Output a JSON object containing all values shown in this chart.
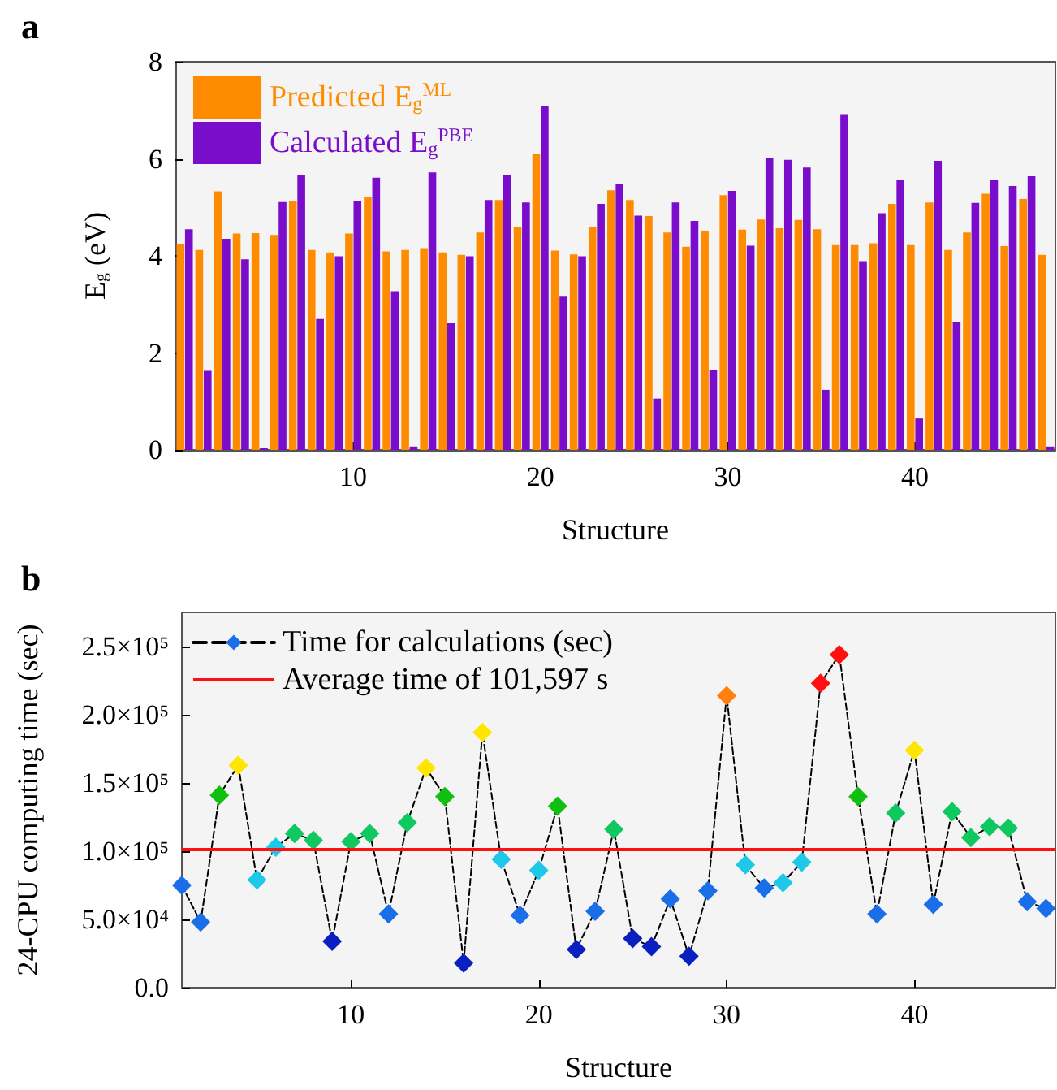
{
  "chart_data": [
    {
      "type": "bar",
      "title": "a",
      "xlabel": "Structure",
      "ylabel": "E$_{g}$ (eV)",
      "x": [
        1,
        2,
        3,
        4,
        5,
        6,
        7,
        8,
        9,
        10,
        11,
        12,
        13,
        14,
        15,
        16,
        17,
        18,
        19,
        20,
        21,
        22,
        23,
        24,
        25,
        26,
        27,
        28,
        29,
        30,
        31,
        32,
        33,
        34,
        35,
        36,
        37,
        38,
        39,
        40,
        41,
        42,
        43,
        44,
        45,
        46,
        47
      ],
      "xlim": [
        0.5,
        47.5
      ],
      "xticks": [
        10,
        20,
        30,
        40
      ],
      "ylim": [
        0,
        8
      ],
      "yticks": [
        0,
        2,
        4,
        6,
        8
      ],
      "legend": "top left",
      "series": [
        {
          "name": "Predicted E$_{g}$$^{ML}$",
          "color": "#ff8c00",
          "values": [
            4.25,
            4.12,
            5.33,
            4.46,
            4.47,
            4.43,
            5.13,
            4.12,
            4.07,
            4.46,
            5.22,
            4.09,
            4.12,
            4.16,
            4.07,
            4.02,
            4.48,
            5.15,
            4.6,
            6.11,
            4.11,
            4.03,
            4.6,
            5.35,
            5.15,
            4.82,
            4.48,
            4.19,
            4.51,
            5.25,
            4.54,
            4.75,
            4.57,
            4.74,
            4.55,
            4.22,
            4.22,
            4.26,
            5.07,
            4.22,
            5.1,
            4.12,
            4.48,
            5.28,
            4.2,
            5.17,
            4.02
          ]
        },
        {
          "name": "Calculated E$_{g}$$^{PBE}$",
          "color": "#7a0ccc",
          "values": [
            4.55,
            1.63,
            4.35,
            3.93,
            0.05,
            5.11,
            5.66,
            2.7,
            3.99,
            5.13,
            5.61,
            3.27,
            0.07,
            5.72,
            2.61,
            3.99,
            5.15,
            5.66,
            5.1,
            7.08,
            3.16,
            3.99,
            5.07,
            5.49,
            4.83,
            1.06,
            5.1,
            4.72,
            1.64,
            5.34,
            4.21,
            6.01,
            5.98,
            5.82,
            1.24,
            6.92,
            3.89,
            4.88,
            5.56,
            0.65,
            5.96,
            2.64,
            5.09,
            5.56,
            5.44,
            5.64,
            0.07
          ]
        }
      ]
    },
    {
      "type": "line",
      "title": "b",
      "xlabel": "Structure",
      "ylabel": "24-CPU computing time (sec)",
      "x": [
        1,
        2,
        3,
        4,
        5,
        6,
        7,
        8,
        9,
        10,
        11,
        12,
        13,
        14,
        15,
        16,
        17,
        18,
        19,
        20,
        21,
        22,
        23,
        24,
        25,
        26,
        27,
        28,
        29,
        30,
        31,
        32,
        33,
        34,
        35,
        36,
        37,
        38,
        39,
        40,
        41,
        42,
        43,
        44,
        45,
        46,
        47
      ],
      "xlim": [
        1,
        47.5
      ],
      "xticks": [
        10,
        20,
        30,
        40
      ],
      "ylim": [
        0,
        275000
      ],
      "yticks": [
        {
          "value": 0,
          "label": "0.0"
        },
        {
          "value": 50000,
          "label": "5.0×10⁴"
        },
        {
          "value": 100000,
          "label": "1.0×10⁵"
        },
        {
          "value": 150000,
          "label": "1.5×10⁵"
        },
        {
          "value": 200000,
          "label": "2.0×10⁵"
        },
        {
          "value": 250000,
          "label": "2.5×10⁵"
        }
      ],
      "legend": "top left",
      "marker": "diamond",
      "line_style": "dashed",
      "series": [
        {
          "name": "Time for calculations (sec)",
          "color": "#000000",
          "values": [
            75000,
            48000,
            141000,
            163000,
            79000,
            103000,
            113000,
            108000,
            34000,
            107000,
            113000,
            54000,
            121000,
            161000,
            140000,
            18000,
            187000,
            94000,
            53000,
            86000,
            133000,
            28000,
            56000,
            116000,
            36000,
            30000,
            65000,
            23000,
            71000,
            214000,
            90000,
            73000,
            77000,
            92000,
            223000,
            244000,
            140000,
            54000,
            128000,
            174000,
            61000,
            129000,
            110000,
            118000,
            117000,
            63000,
            58000
          ],
          "colors": [
            "#1a6ee8",
            "#1a6ee8",
            "#10c010",
            "#ffe600",
            "#1ec8e8",
            "#1ec8e8",
            "#10c860",
            "#10c860",
            "#0a1fbf",
            "#10c860",
            "#10c860",
            "#1a6ee8",
            "#10c860",
            "#ffe600",
            "#10c010",
            "#0a1fbf",
            "#ffe600",
            "#1ec8e8",
            "#1a6ee8",
            "#1ec8e8",
            "#10c010",
            "#0a1fbf",
            "#1a6ee8",
            "#10c860",
            "#0a1fbf",
            "#0a1fbf",
            "#1a6ee8",
            "#0a1fbf",
            "#1a6ee8",
            "#ff7f0f",
            "#1ec8e8",
            "#1a6ee8",
            "#1ec8e8",
            "#1ec8e8",
            "#ff1010",
            "#ff1010",
            "#10c010",
            "#1a6ee8",
            "#10c860",
            "#ffe600",
            "#1a6ee8",
            "#10c860",
            "#10c860",
            "#10c860",
            "#10c860",
            "#1a6ee8",
            "#1a6ee8"
          ]
        }
      ],
      "ref_lines": [
        {
          "axis": "y",
          "value": 101597,
          "label": "Average time of 101,597 s",
          "color": "#ff1010"
        }
      ]
    }
  ]
}
